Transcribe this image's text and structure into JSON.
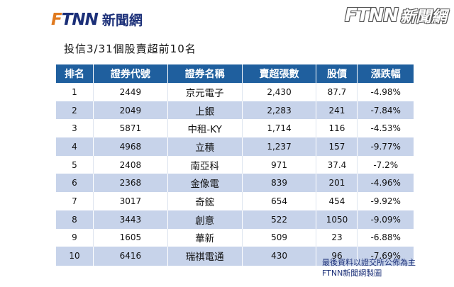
{
  "logo": {
    "brand": "FTNN",
    "brand_cn": "新聞網"
  },
  "watermark": {
    "brand": "FTNN",
    "brand_cn": "新聞網"
  },
  "title": "投信3/31個股賣超前10名",
  "table": {
    "headers": [
      "排名",
      "證券代號",
      "證券名稱",
      "賣超張數",
      "股價",
      "漲跌幅"
    ],
    "rows": [
      [
        "1",
        "2449",
        "京元電子",
        "2,430",
        "87.7",
        "-4.98%"
      ],
      [
        "2",
        "2049",
        "上銀",
        "2,283",
        "241",
        "-7.84%"
      ],
      [
        "3",
        "5871",
        "中租-KY",
        "1,714",
        "116",
        "-4.53%"
      ],
      [
        "4",
        "4968",
        "立積",
        "1,237",
        "157",
        "-9.77%"
      ],
      [
        "5",
        "2408",
        "南亞科",
        "971",
        "37.4",
        "-7.2%"
      ],
      [
        "6",
        "2368",
        "金像電",
        "839",
        "201",
        "-4.96%"
      ],
      [
        "7",
        "3017",
        "奇鋐",
        "654",
        "454",
        "-9.92%"
      ],
      [
        "8",
        "3443",
        "創意",
        "522",
        "1050",
        "-9.09%"
      ],
      [
        "9",
        "1605",
        "華新",
        "509",
        "23",
        "-6.88%"
      ],
      [
        "10",
        "6416",
        "瑞祺電通",
        "430",
        "96",
        "-7.69%"
      ]
    ]
  },
  "footnote": {
    "line1": "最後資料以證交所公佈為主",
    "line2": "FTNN新聞網製圖"
  },
  "colors": {
    "header_bg": "#1f5f9e",
    "stripe": "#c7d3ea",
    "brand_blue": "#1b2f78",
    "brand_orange": "#e07a1f"
  }
}
